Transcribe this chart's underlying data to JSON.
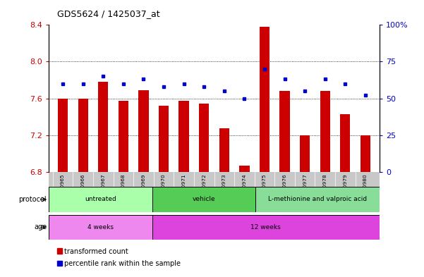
{
  "title": "GDS5624 / 1425037_at",
  "samples": [
    "GSM1520965",
    "GSM1520966",
    "GSM1520967",
    "GSM1520968",
    "GSM1520969",
    "GSM1520970",
    "GSM1520971",
    "GSM1520972",
    "GSM1520973",
    "GSM1520974",
    "GSM1520975",
    "GSM1520976",
    "GSM1520977",
    "GSM1520978",
    "GSM1520979",
    "GSM1520980"
  ],
  "red_values": [
    7.6,
    7.6,
    7.78,
    7.57,
    7.69,
    7.52,
    7.57,
    7.54,
    7.27,
    6.87,
    8.38,
    7.68,
    7.2,
    7.68,
    7.43,
    7.2
  ],
  "blue_values": [
    60,
    60,
    65,
    60,
    63,
    58,
    60,
    58,
    55,
    50,
    70,
    63,
    55,
    63,
    60,
    52
  ],
  "ymin": 6.8,
  "ymax": 8.4,
  "yticks": [
    6.8,
    7.2,
    7.6,
    8.0,
    8.4
  ],
  "y2min": 0,
  "y2max": 100,
  "y2ticks": [
    0,
    25,
    50,
    75,
    100
  ],
  "y2ticklabels": [
    "0",
    "25",
    "50",
    "75",
    "100%"
  ],
  "bar_color": "#cc0000",
  "blue_color": "#0000cc",
  "protocol_colors": [
    "#aaffaa",
    "#55cc55",
    "#88dd99"
  ],
  "age_colors": [
    "#ee88ee",
    "#dd44dd"
  ],
  "protocol_groups": [
    {
      "label": "untreated",
      "start": 0,
      "end": 5
    },
    {
      "label": "vehicle",
      "start": 5,
      "end": 10
    },
    {
      "label": "L-methionine and valproic acid",
      "start": 10,
      "end": 16
    }
  ],
  "age_groups": [
    {
      "label": "4 weeks",
      "start": 0,
      "end": 5
    },
    {
      "label": "12 weeks",
      "start": 5,
      "end": 16
    }
  ],
  "red_label_color": "#cc0000",
  "blue_label_color": "#0000cc",
  "tick_bg_color": "#c8c8c8",
  "legend_red_label": "transformed count",
  "legend_blue_label": "percentile rank within the sample",
  "grid_yticks": [
    7.2,
    7.6,
    8.0
  ]
}
